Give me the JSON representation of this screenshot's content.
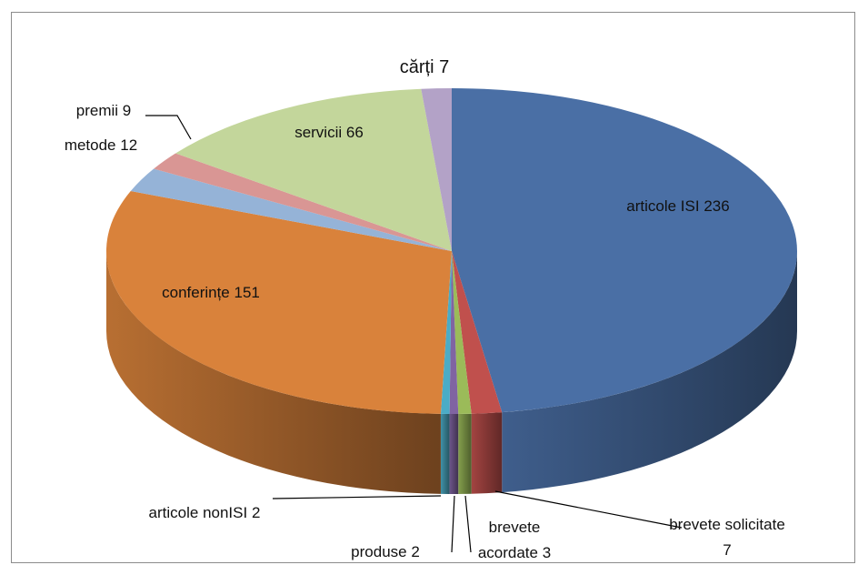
{
  "chart_data": {
    "type": "pie3d",
    "categories": [
      "articole ISI",
      "brevete solicitate",
      "brevete acordate",
      "produse",
      "articole nonISI",
      "conferințe",
      "metode",
      "premii",
      "servicii",
      "cărți"
    ],
    "values": [
      236,
      7,
      3,
      2,
      2,
      151,
      12,
      9,
      66,
      7
    ],
    "colors": [
      "#4a6fa5",
      "#c0504d",
      "#9bbb59",
      "#8064a2",
      "#4bacc6",
      "#d9823b",
      "#95b3d7",
      "#d99694",
      "#c3d69b",
      "#b3a2c7"
    ]
  }
}
